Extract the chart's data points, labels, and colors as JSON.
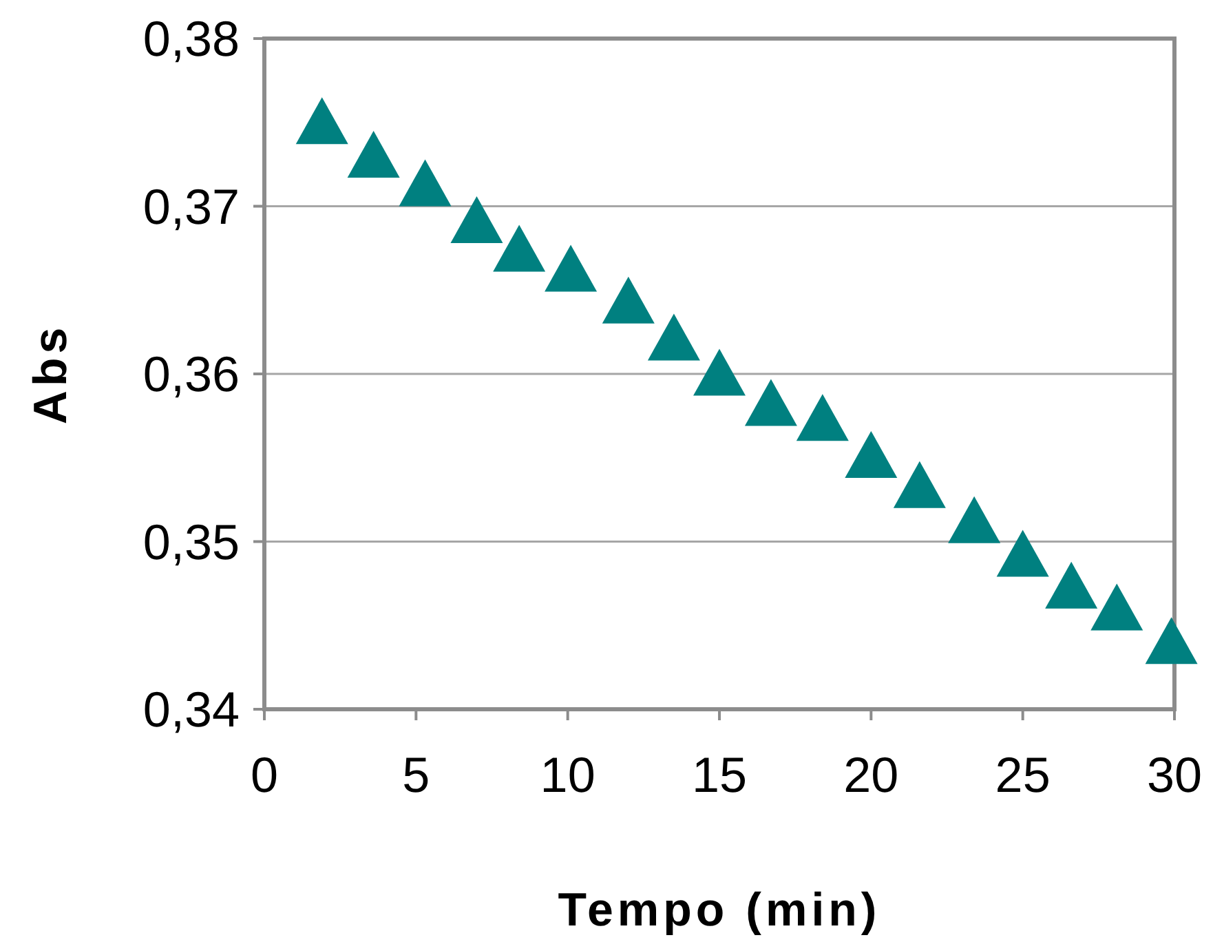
{
  "chart_data": {
    "type": "scatter",
    "xlabel": "Tempo (min)",
    "ylabel": "Abs",
    "x": [
      1.9,
      3.6,
      5.3,
      7.0,
      8.4,
      10.1,
      12.0,
      13.5,
      15.0,
      16.7,
      18.4,
      20.0,
      21.6,
      23.4,
      25.0,
      26.6,
      28.1,
      29.9
    ],
    "series": [
      {
        "color": "#008080",
        "values": [
          0.3751,
          0.3731,
          0.3714,
          0.3692,
          0.3675,
          0.3663,
          0.3644,
          0.3622,
          0.3601,
          0.3583,
          0.3574,
          0.3552,
          0.3534,
          0.3513,
          0.3493,
          0.3474,
          0.3461,
          0.3441
        ]
      }
    ],
    "xlim": [
      0,
      30
    ],
    "xticks": [
      0,
      5,
      10,
      15,
      20,
      25,
      30
    ],
    "ylim": [
      0.34,
      0.38
    ],
    "yticks": [
      {
        "value": 0.34,
        "label": "0,34"
      },
      {
        "value": 0.35,
        "label": "0,35"
      },
      {
        "value": 0.36,
        "label": "0,36"
      },
      {
        "value": 0.37,
        "label": "0,37"
      },
      {
        "value": 0.38,
        "label": "0,38"
      }
    ],
    "grid": "y",
    "marker": "triangle"
  }
}
